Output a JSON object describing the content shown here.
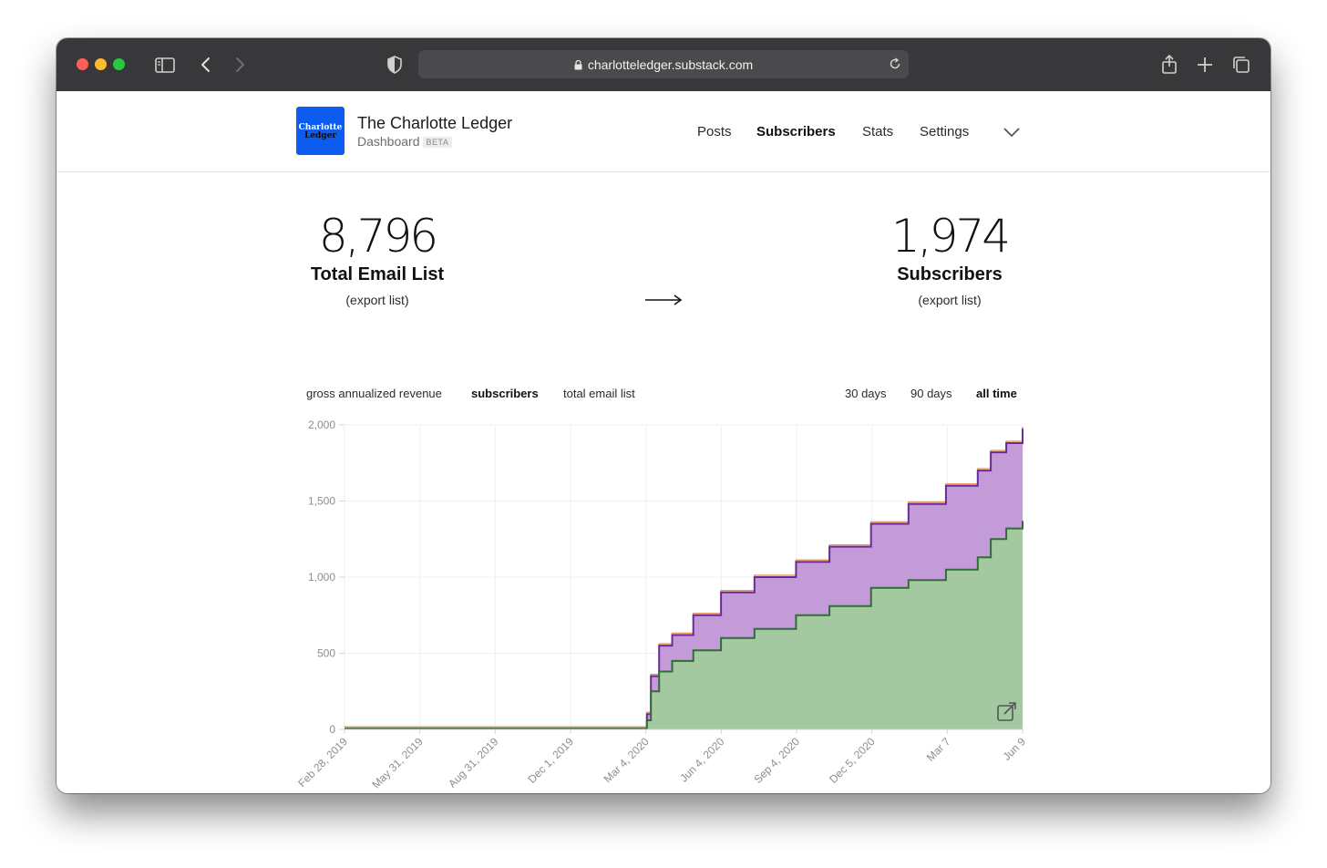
{
  "browser": {
    "url": "charlotteledger.substack.com"
  },
  "header": {
    "logo_line1": "Charlotte",
    "logo_line2": "Ledger",
    "title": "The Charlotte Ledger",
    "subtitle": "Dashboard",
    "badge": "BETA",
    "nav": [
      "Posts",
      "Subscribers",
      "Stats",
      "Settings"
    ],
    "active_nav": "Subscribers"
  },
  "stats": {
    "email_list": {
      "value": "8,796",
      "label": "Total Email List",
      "export": "(export list)"
    },
    "subscribers": {
      "value": "1,974",
      "label": "Subscribers",
      "export": "(export list)"
    }
  },
  "metric_tabs": [
    "gross annualized revenue",
    "subscribers",
    "total email list"
  ],
  "active_metric": "subscribers",
  "range_tabs": [
    "30 days",
    "90 days",
    "all time"
  ],
  "active_range": "all time",
  "colors": {
    "purple_fill": "#c39bd9",
    "purple_line": "#6a2a9a",
    "green_fill": "#a4c9a0",
    "green_line": "#2e6e35",
    "orange_line": "#e89a5a"
  },
  "chart_data": {
    "type": "area",
    "ylim": [
      0,
      2000
    ],
    "yticks": [
      0,
      500,
      1000,
      1500,
      2000
    ],
    "ytick_labels": [
      "0",
      "500",
      "1,000",
      "1,500",
      "2,000"
    ],
    "x_tick_labels": [
      "Feb 28, 2019",
      "May 31, 2019",
      "Aug 31, 2019",
      "Dec 1, 2019",
      "Mar 4, 2020",
      "Jun 4, 2020",
      "Sep 4, 2020",
      "Dec 5, 2020",
      "Mar 7",
      "Jun 9"
    ],
    "x": [
      "Feb 28, 2019",
      "May 31, 2019",
      "Aug 31, 2019",
      "Dec 1, 2019",
      "Mar 1, 2020",
      "Mar 5, 2020",
      "Mar 10, 2020",
      "Mar 20, 2020",
      "Apr 5, 2020",
      "May 1, 2020",
      "Jun 4, 2020",
      "Jul 15, 2020",
      "Sep 4, 2020",
      "Oct 15, 2020",
      "Dec 5, 2020",
      "Jan 20",
      "Mar 7",
      "Apr 15",
      "May 1",
      "May 20",
      "Jun 9"
    ],
    "series": [
      {
        "values": [
          5,
          5,
          5,
          5,
          5,
          100,
          350,
          550,
          620,
          750,
          900,
          1000,
          1100,
          1200,
          1350,
          1480,
          1600,
          1700,
          1820,
          1880,
          1974
        ]
      },
      {
        "values": [
          5,
          5,
          5,
          5,
          5,
          60,
          250,
          380,
          450,
          520,
          600,
          660,
          750,
          810,
          930,
          980,
          1050,
          1130,
          1250,
          1320,
          1370
        ]
      }
    ]
  }
}
